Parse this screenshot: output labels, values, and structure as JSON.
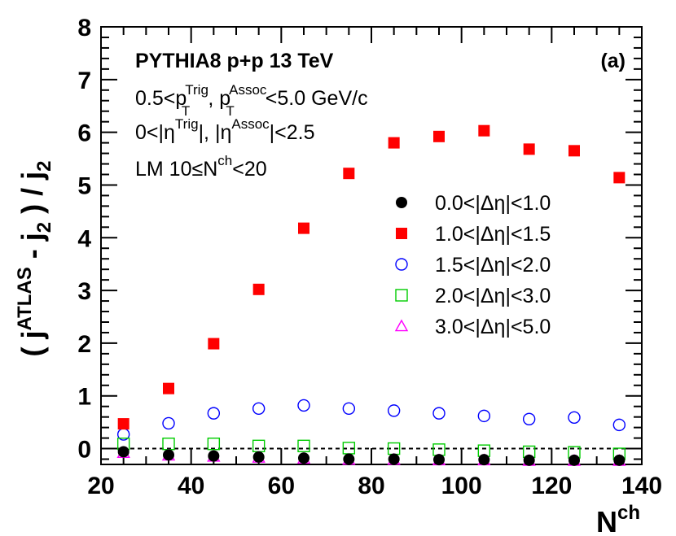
{
  "chart_data": {
    "type": "scatter",
    "title": "PYTHIA8 p+p 13 TeV",
    "panel_label": "(a)",
    "annotations": [
      "0.5<p_T^Trig, p_T^Assoc<5.0 GeV/c",
      "0<|η^Trig|, |η^Assoc|<2.5",
      "LM 10≤N^ch<20"
    ],
    "xlabel": "N^ch",
    "ylabel": "( j^ATLAS - j_2 ) / j_2",
    "xlim": [
      20,
      140
    ],
    "ylim": [
      -0.3,
      8
    ],
    "x_ticks": [
      20,
      40,
      60,
      80,
      100,
      120,
      140
    ],
    "y_ticks": [
      0,
      1,
      2,
      3,
      4,
      5,
      6,
      7,
      8
    ],
    "reference_line_y": 0,
    "x": [
      25,
      35,
      45,
      55,
      65,
      75,
      85,
      95,
      105,
      115,
      125,
      135
    ],
    "series": [
      {
        "name": "0.0<|Δη|<1.0",
        "color": "#000000",
        "marker": "filled-circle",
        "values": [
          -0.06,
          -0.12,
          -0.14,
          -0.16,
          -0.18,
          -0.2,
          -0.2,
          -0.21,
          -0.21,
          -0.22,
          -0.22,
          -0.22
        ]
      },
      {
        "name": "1.0<|Δη|<1.5",
        "color": "#ff0000",
        "marker": "filled-square",
        "values": [
          0.47,
          1.14,
          1.99,
          3.02,
          4.18,
          5.22,
          5.8,
          5.92,
          6.03,
          5.68,
          5.65,
          5.14
        ]
      },
      {
        "name": "1.5<|Δη|<2.0",
        "color": "#0000ff",
        "marker": "open-circle",
        "values": [
          0.27,
          0.48,
          0.67,
          0.76,
          0.82,
          0.76,
          0.72,
          0.67,
          0.62,
          0.56,
          0.59,
          0.45
        ]
      },
      {
        "name": "2.0<|Δη|<3.0",
        "color": "#00cc00",
        "marker": "open-square",
        "values": [
          0.09,
          0.09,
          0.09,
          0.05,
          0.05,
          0.01,
          0.0,
          -0.02,
          -0.04,
          -0.06,
          -0.07,
          -0.1
        ]
      },
      {
        "name": "3.0<|Δη|<5.0",
        "color": "#ff00ff",
        "marker": "open-triangle",
        "values": [
          -0.08,
          -0.13,
          -0.15,
          -0.17,
          -0.19,
          -0.21,
          -0.21,
          -0.22,
          -0.22,
          -0.23,
          -0.23,
          -0.23
        ]
      }
    ]
  }
}
